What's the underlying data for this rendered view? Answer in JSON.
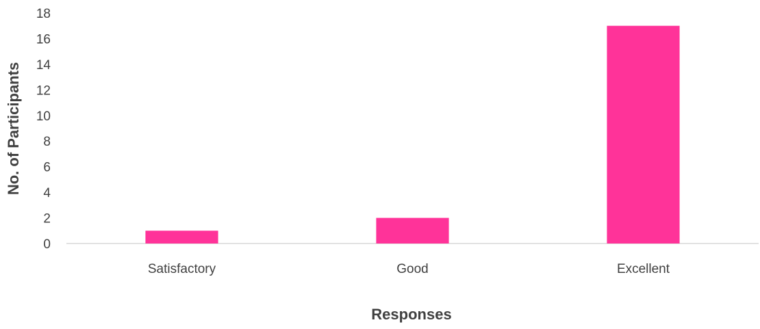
{
  "chart_data": {
    "type": "bar",
    "categories": [
      "Satisfactory",
      "Good",
      "Excellent"
    ],
    "values": [
      1,
      2,
      17
    ],
    "xlabel": "Responses",
    "ylabel": "No. of Participants",
    "ylim": [
      0,
      18
    ],
    "yticks": [
      0,
      2,
      4,
      6,
      8,
      10,
      12,
      14,
      16,
      18
    ],
    "grid": false,
    "legend": "none",
    "bar_color": "#FF3399",
    "axis_color": "#D9D9D9"
  }
}
